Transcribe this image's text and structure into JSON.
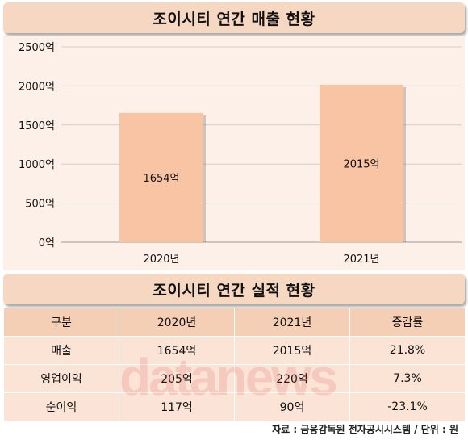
{
  "chart_title": "조이시티 연간 매출 현황",
  "table_title": "조이시티 연간 실적 현황",
  "chart_data": {
    "type": "bar",
    "categories": [
      "2020년",
      "2021년"
    ],
    "values": [
      1654,
      2015
    ],
    "value_labels": [
      "1654억",
      "2015억"
    ],
    "yticks": [
      "0억",
      "500억",
      "1000억",
      "1500억",
      "2000억",
      "2500억"
    ],
    "ylim": [
      0,
      2500
    ],
    "unit": "억",
    "grid": true,
    "bar_color": "#f8c4a4"
  },
  "table": {
    "headers": [
      "구분",
      "2020년",
      "2021년",
      "증감률"
    ],
    "rows": [
      [
        "매출",
        "1654억",
        "2015억",
        "21.8%"
      ],
      [
        "영업이익",
        "205억",
        "220억",
        "7.3%"
      ],
      [
        "순이익",
        "117억",
        "90억",
        "-23.1%"
      ]
    ]
  },
  "watermark": "datanews",
  "source": "자료 : 금융감독원 전자공시시스템 / 단위 : 원",
  "colors": {
    "title_bg": "#f5d7c2",
    "panel_bg": "#fdf0e8",
    "header_bg": "#f5cfb5",
    "row_bg": "#fbe4d6",
    "bar": "#f8c4a4"
  }
}
